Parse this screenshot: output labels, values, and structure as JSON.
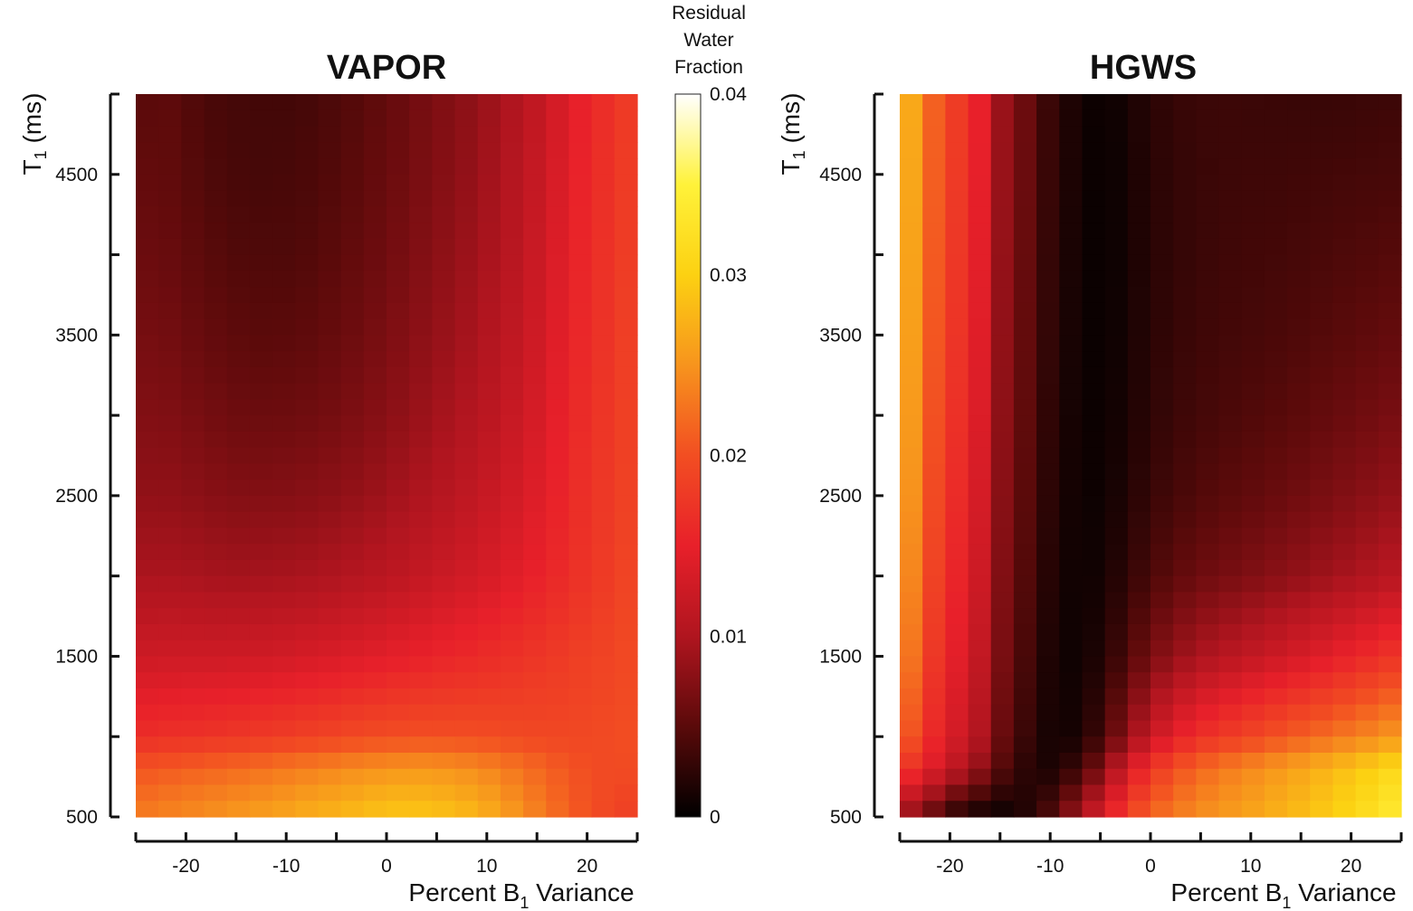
{
  "colormap": {
    "name": "hot",
    "stops": [
      "#000000",
      "#5a0a0a",
      "#b0151f",
      "#e8202a",
      "#f24e22",
      "#f7941d",
      "#fcd112",
      "#fff23a",
      "#ffffff"
    ]
  },
  "colorbar": {
    "title_lines": [
      "Residual",
      "Water",
      "Fraction"
    ],
    "range": [
      0,
      0.04
    ],
    "tick_values": [
      0,
      0.01,
      0.02,
      0.03,
      0.04
    ],
    "tick_labels": [
      "0",
      "0.01",
      "0.02",
      "0.03",
      "0.04"
    ]
  },
  "chart_data": [
    {
      "type": "heatmap",
      "title": "VAPOR",
      "xlabel_main": "Percent B",
      "xlabel_sub": "1",
      "xlabel_suffix": " Variance",
      "ylabel_main": "T",
      "ylabel_sub": "1",
      "ylabel_suffix": " (ms)",
      "xlim": [
        -25,
        25
      ],
      "ylim": [
        500,
        5000
      ],
      "x_tick_values": [
        -20,
        -10,
        0,
        10,
        20
      ],
      "x_tick_labels": [
        "-20",
        "-10",
        "0",
        "10",
        "20"
      ],
      "x_minor_ticks": [
        -25,
        -15,
        -5,
        5,
        15,
        25
      ],
      "y_tick_values": [
        500,
        1500,
        2500,
        3500,
        4500
      ],
      "y_tick_labels": [
        "500",
        "1500",
        "2500",
        "3500",
        "4500"
      ],
      "y_minor_ticks": [
        1000,
        2000,
        3000,
        4000,
        5000
      ],
      "grid_x": [
        -24,
        -21.7,
        -19.3,
        -17,
        -14.7,
        -12.3,
        -10,
        -7.7,
        -5.3,
        -3,
        -0.7,
        1.7,
        4,
        6.3,
        8.7,
        11,
        13.3,
        15.7,
        18,
        20.3,
        22.7,
        25
      ],
      "grid_y": [
        5000,
        4500,
        4000,
        3500,
        3000,
        2500,
        2000,
        1500,
        1000,
        800,
        500
      ],
      "values": [
        [
          0.005,
          0.0052,
          0.0045,
          0.004,
          0.0038,
          0.0037,
          0.0037,
          0.0039,
          0.0043,
          0.0048,
          0.0054,
          0.006,
          0.0067,
          0.0074,
          0.0082,
          0.0092,
          0.0104,
          0.012,
          0.014,
          0.0158,
          0.017,
          0.0185
        ],
        [
          0.0055,
          0.0054,
          0.0048,
          0.0043,
          0.004,
          0.0039,
          0.004,
          0.0042,
          0.0046,
          0.0051,
          0.0057,
          0.0063,
          0.007,
          0.0077,
          0.0085,
          0.0096,
          0.0108,
          0.0124,
          0.0143,
          0.016,
          0.0172,
          0.0187
        ],
        [
          0.006,
          0.0058,
          0.0053,
          0.0048,
          0.0045,
          0.0044,
          0.0044,
          0.0046,
          0.0051,
          0.0056,
          0.0061,
          0.0068,
          0.0075,
          0.0082,
          0.009,
          0.01,
          0.0112,
          0.0128,
          0.0146,
          0.0162,
          0.0174,
          0.0188
        ],
        [
          0.0066,
          0.0064,
          0.0059,
          0.0055,
          0.0052,
          0.005,
          0.0051,
          0.0053,
          0.0057,
          0.0062,
          0.0068,
          0.0074,
          0.0081,
          0.0088,
          0.0096,
          0.0106,
          0.0117,
          0.0132,
          0.015,
          0.0164,
          0.0176,
          0.019
        ],
        [
          0.0073,
          0.0072,
          0.0068,
          0.0064,
          0.0061,
          0.006,
          0.0061,
          0.0063,
          0.0066,
          0.0071,
          0.0076,
          0.0082,
          0.0089,
          0.0096,
          0.0104,
          0.0113,
          0.0124,
          0.0138,
          0.0154,
          0.0168,
          0.0178,
          0.0191
        ],
        [
          0.0082,
          0.0082,
          0.0079,
          0.0076,
          0.0074,
          0.0074,
          0.0075,
          0.0077,
          0.008,
          0.0084,
          0.0089,
          0.0095,
          0.0101,
          0.0107,
          0.0115,
          0.0123,
          0.0133,
          0.0145,
          0.0158,
          0.0171,
          0.018,
          0.0192
        ],
        [
          0.0097,
          0.0097,
          0.0096,
          0.0094,
          0.0093,
          0.0094,
          0.0095,
          0.0097,
          0.01,
          0.0104,
          0.0108,
          0.0113,
          0.0118,
          0.0124,
          0.013,
          0.0137,
          0.0145,
          0.0154,
          0.0164,
          0.0174,
          0.0183,
          0.0194
        ],
        [
          0.0125,
          0.0126,
          0.0126,
          0.0126,
          0.0127,
          0.0128,
          0.013,
          0.0133,
          0.0136,
          0.014,
          0.0144,
          0.0148,
          0.0152,
          0.0156,
          0.016,
          0.0165,
          0.017,
          0.0175,
          0.018,
          0.0186,
          0.019,
          0.0197
        ],
        [
          0.0165,
          0.0168,
          0.017,
          0.0172,
          0.0175,
          0.0178,
          0.0182,
          0.0186,
          0.019,
          0.0194,
          0.0197,
          0.0199,
          0.02,
          0.0199,
          0.0198,
          0.0196,
          0.0194,
          0.0193,
          0.0192,
          0.0194,
          0.0196,
          0.02
        ],
        [
          0.0205,
          0.0209,
          0.0213,
          0.0217,
          0.0221,
          0.0225,
          0.023,
          0.0235,
          0.024,
          0.0245,
          0.0249,
          0.0252,
          0.0252,
          0.0249,
          0.0244,
          0.0236,
          0.0226,
          0.0215,
          0.0205,
          0.0198,
          0.0195,
          0.0198
        ],
        [
          0.0235,
          0.024,
          0.0245,
          0.025,
          0.0255,
          0.026,
          0.0266,
          0.0272,
          0.0278,
          0.0284,
          0.029,
          0.0293,
          0.0292,
          0.0287,
          0.0279,
          0.0266,
          0.0249,
          0.0231,
          0.0214,
          0.02,
          0.019,
          0.018
        ]
      ]
    },
    {
      "type": "heatmap",
      "title": "HGWS",
      "xlabel_main": "Percent B",
      "xlabel_sub": "1",
      "xlabel_suffix": " Variance",
      "ylabel_main": "T",
      "ylabel_sub": "1",
      "ylabel_suffix": " (ms)",
      "xlim": [
        -25,
        25
      ],
      "ylim": [
        500,
        5000
      ],
      "x_tick_values": [
        -20,
        -10,
        0,
        10,
        20
      ],
      "x_tick_labels": [
        "-20",
        "-10",
        "0",
        "10",
        "20"
      ],
      "x_minor_ticks": [
        -25,
        -15,
        -5,
        5,
        15,
        25
      ],
      "y_tick_values": [
        500,
        1500,
        2500,
        3500,
        4500
      ],
      "y_tick_labels": [
        "500",
        "1500",
        "2500",
        "3500",
        "4500"
      ],
      "y_minor_ticks": [
        1000,
        2000,
        3000,
        4000,
        5000
      ],
      "grid_x": [
        -24,
        -21.7,
        -19.3,
        -17,
        -14.7,
        -12.3,
        -10,
        -7.7,
        -5.3,
        -3,
        -0.7,
        1.7,
        4,
        6.3,
        8.7,
        11,
        13.3,
        15.7,
        18,
        20.3,
        22.7,
        25
      ],
      "grid_y": [
        5000,
        4500,
        4000,
        3500,
        3000,
        2500,
        2000,
        1500,
        1000,
        800,
        500
      ],
      "values": [
        [
          0.027,
          0.0215,
          0.018,
          0.015,
          0.0085,
          0.0058,
          0.003,
          0.0015,
          0.0006,
          0.001,
          0.002,
          0.0028,
          0.0032,
          0.0033,
          0.0033,
          0.0032,
          0.0032,
          0.0031,
          0.0031,
          0.0032,
          0.0033,
          0.0034
        ],
        [
          0.0268,
          0.0213,
          0.0178,
          0.0148,
          0.0084,
          0.0057,
          0.0029,
          0.0014,
          0.0005,
          0.0009,
          0.0019,
          0.0027,
          0.0031,
          0.0033,
          0.0034,
          0.0035,
          0.0035,
          0.0036,
          0.0037,
          0.0038,
          0.0039,
          0.004
        ],
        [
          0.0265,
          0.021,
          0.0175,
          0.0145,
          0.0082,
          0.0055,
          0.0027,
          0.0013,
          0.0005,
          0.0009,
          0.0019,
          0.0027,
          0.0031,
          0.0034,
          0.0036,
          0.0037,
          0.0038,
          0.004,
          0.0042,
          0.0044,
          0.0046,
          0.0048
        ],
        [
          0.0262,
          0.0207,
          0.0172,
          0.0142,
          0.008,
          0.0053,
          0.0026,
          0.0012,
          0.0005,
          0.001,
          0.002,
          0.0028,
          0.0033,
          0.0036,
          0.0038,
          0.004,
          0.0042,
          0.0045,
          0.0048,
          0.0051,
          0.0054,
          0.0057
        ],
        [
          0.0258,
          0.0203,
          0.0168,
          0.0138,
          0.0078,
          0.0051,
          0.0024,
          0.0011,
          0.0006,
          0.0012,
          0.0022,
          0.0031,
          0.0036,
          0.004,
          0.0043,
          0.0046,
          0.0049,
          0.0053,
          0.0057,
          0.0061,
          0.0065,
          0.0069
        ],
        [
          0.0252,
          0.0197,
          0.0162,
          0.0132,
          0.0075,
          0.0048,
          0.0022,
          0.001,
          0.0007,
          0.0015,
          0.0027,
          0.0037,
          0.0043,
          0.0048,
          0.0052,
          0.0056,
          0.006,
          0.0065,
          0.007,
          0.0075,
          0.008,
          0.0085
        ],
        [
          0.0243,
          0.0189,
          0.0155,
          0.0125,
          0.0071,
          0.0044,
          0.0019,
          0.0009,
          0.001,
          0.0022,
          0.0037,
          0.005,
          0.0058,
          0.0064,
          0.0069,
          0.0074,
          0.0079,
          0.0085,
          0.0091,
          0.0097,
          0.0103,
          0.011
        ],
        [
          0.023,
          0.0177,
          0.0145,
          0.0115,
          0.0066,
          0.0038,
          0.0015,
          0.0008,
          0.0016,
          0.0036,
          0.006,
          0.008,
          0.0093,
          0.0103,
          0.0111,
          0.0119,
          0.0127,
          0.0136,
          0.0145,
          0.0155,
          0.0165,
          0.0176
        ],
        [
          0.0205,
          0.016,
          0.013,
          0.0102,
          0.0057,
          0.003,
          0.0012,
          0.0012,
          0.0032,
          0.007,
          0.0108,
          0.014,
          0.016,
          0.0174,
          0.0185,
          0.0195,
          0.0205,
          0.0215,
          0.0225,
          0.0235,
          0.0245,
          0.0256
        ],
        [
          0.017,
          0.014,
          0.011,
          0.0082,
          0.0045,
          0.0022,
          0.0015,
          0.003,
          0.0065,
          0.0115,
          0.016,
          0.0193,
          0.0212,
          0.0226,
          0.0237,
          0.0247,
          0.0257,
          0.0267,
          0.0278,
          0.029,
          0.0302,
          0.0316
        ],
        [
          0.008,
          0.005,
          0.002,
          0.0008,
          0.0006,
          0.002,
          0.0045,
          0.0085,
          0.013,
          0.0175,
          0.021,
          0.023,
          0.0242,
          0.0252,
          0.026,
          0.0268,
          0.0277,
          0.0287,
          0.0298,
          0.031,
          0.0325,
          0.0345
        ]
      ]
    }
  ]
}
